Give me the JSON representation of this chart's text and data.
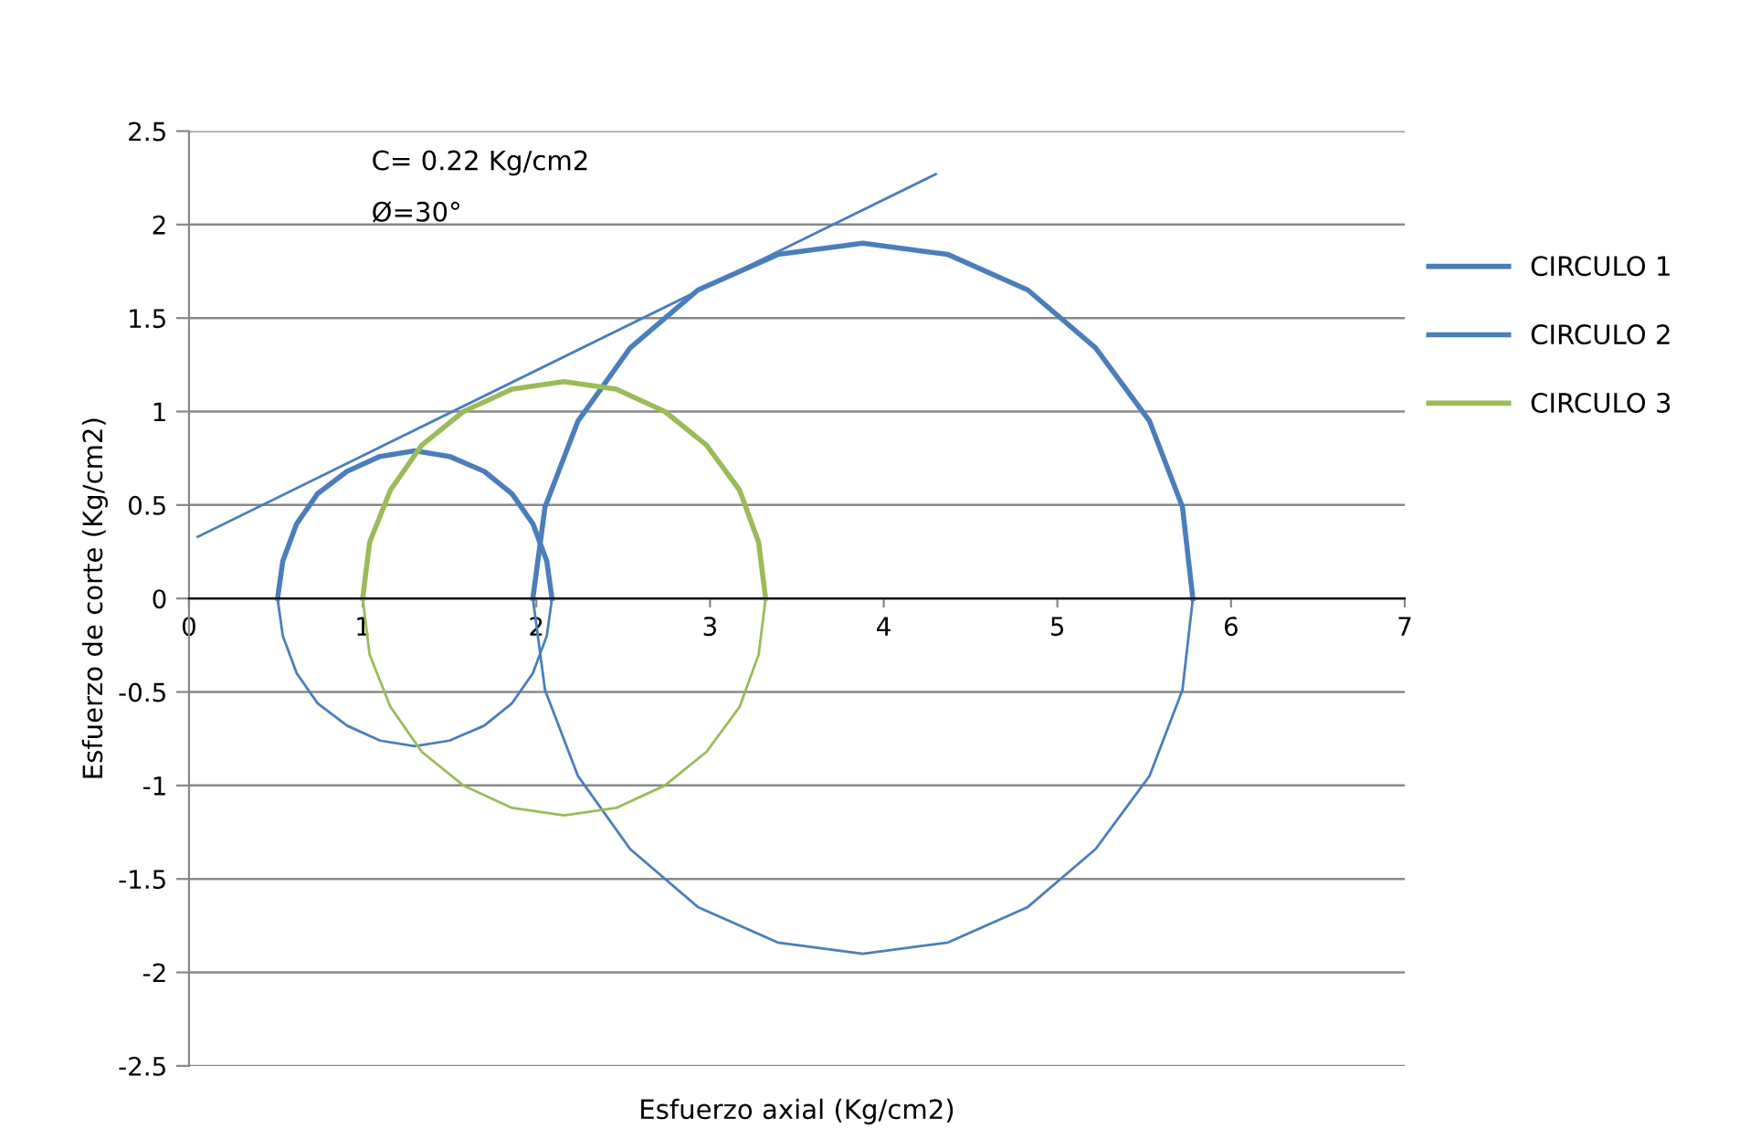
{
  "chart_data": {
    "type": "line",
    "xlabel": "Esfuerzo axial (Kg/cm2)",
    "ylabel": "Esfuerzo de corte (Kg/cm2)",
    "annotations": [
      "C= 0.22 Kg/cm2",
      "Ø=30°"
    ],
    "xlim": [
      0,
      7
    ],
    "xticks": [
      0,
      1,
      2,
      3,
      4,
      5,
      6,
      7
    ],
    "ylim": [
      -2.5,
      2.5
    ],
    "yticks": [
      -2.5,
      -2,
      -1.5,
      -1,
      -0.5,
      0,
      0.5,
      1,
      1.5,
      2,
      2.5
    ],
    "grid": "y",
    "legend": "right",
    "marker": "none",
    "line_style": "solid",
    "series": [
      {
        "name": "CIRCULO 1",
        "color": "#4a7ebb",
        "x": [
          0.51,
          0.54,
          0.62,
          0.74,
          0.91,
          1.1,
          1.3,
          1.5,
          1.7,
          1.86,
          1.98,
          2.06,
          2.09
        ],
        "values": [
          0,
          0.2,
          0.4,
          0.56,
          0.68,
          0.76,
          0.79,
          0.76,
          0.68,
          0.56,
          0.4,
          0.2,
          0
        ]
      },
      {
        "color": "#4a7ebb",
        "x": [
          0.51,
          0.54,
          0.62,
          0.74,
          0.91,
          1.1,
          1.3,
          1.5,
          1.7,
          1.86,
          1.98,
          2.06,
          2.09
        ],
        "values": [
          0,
          -0.2,
          -0.4,
          -0.56,
          -0.68,
          -0.76,
          -0.79,
          -0.76,
          -0.68,
          -0.56,
          -0.4,
          -0.2,
          0
        ]
      },
      {
        "name": "CIRCULO 2",
        "color": "#4a7ebb",
        "x": [
          1.98,
          2.05,
          2.24,
          2.54,
          2.93,
          3.39,
          3.88,
          4.37,
          4.83,
          5.22,
          5.53,
          5.72,
          5.78
        ],
        "values": [
          0,
          0.49,
          0.95,
          1.34,
          1.65,
          1.84,
          1.9,
          1.84,
          1.65,
          1.34,
          0.95,
          0.49,
          0
        ]
      },
      {
        "color": "#4a7ebb",
        "x": [
          1.98,
          2.05,
          2.24,
          2.54,
          2.93,
          3.39,
          3.88,
          4.37,
          4.83,
          5.22,
          5.53,
          5.72,
          5.78
        ],
        "values": [
          0,
          -0.49,
          -0.95,
          -1.34,
          -1.65,
          -1.84,
          -1.9,
          -1.84,
          -1.65,
          -1.34,
          -0.95,
          -0.49,
          0
        ]
      },
      {
        "name": "CIRCULO 3",
        "color": "#9bbb59",
        "x": [
          1.0,
          1.04,
          1.16,
          1.34,
          1.58,
          1.86,
          2.16,
          2.46,
          2.74,
          2.98,
          3.17,
          3.28,
          3.32
        ],
        "values": [
          0,
          0.3,
          0.58,
          0.82,
          1.0,
          1.12,
          1.16,
          1.12,
          1.0,
          0.82,
          0.58,
          0.3,
          0
        ]
      },
      {
        "color": "#9bbb59",
        "x": [
          1.0,
          1.04,
          1.16,
          1.34,
          1.58,
          1.86,
          2.16,
          2.46,
          2.74,
          2.98,
          3.17,
          3.28,
          3.32
        ],
        "values": [
          0,
          -0.3,
          -0.58,
          -0.82,
          -1.0,
          -1.12,
          -1.16,
          -1.12,
          -1.0,
          -0.82,
          -0.58,
          -0.3,
          0
        ]
      },
      {
        "color": "#4a7ebb",
        "x": [
          0.05,
          4.3
        ],
        "values": [
          0.33,
          2.27
        ]
      }
    ]
  }
}
